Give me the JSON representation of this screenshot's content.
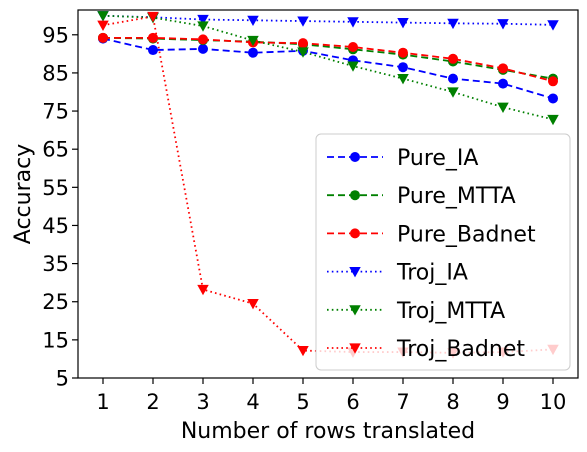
{
  "chart_data": {
    "type": "line",
    "xlabel": "Number of rows translated",
    "ylabel": "Accuracy",
    "x": [
      1,
      2,
      3,
      4,
      5,
      6,
      7,
      8,
      9,
      10
    ],
    "xlim": [
      0.5,
      10.5
    ],
    "ylim": [
      5,
      101.5
    ],
    "xticks": [
      "1",
      "2",
      "3",
      "4",
      "5",
      "6",
      "7",
      "8",
      "9",
      "10"
    ],
    "yticks": [
      5,
      15,
      25,
      35,
      45,
      55,
      65,
      75,
      85,
      95
    ],
    "grid": false,
    "legend_position": "bottom-right",
    "series": [
      {
        "name": "Pure_IA",
        "color": "#0000ff",
        "dash": "dashed",
        "marker": "circle",
        "values": [
          94.0,
          91.0,
          91.3,
          90.3,
          90.8,
          88.3,
          86.5,
          83.5,
          82.2,
          78.3
        ]
      },
      {
        "name": "Pure_MTTA",
        "color": "#008000",
        "dash": "dashed",
        "marker": "circle",
        "values": [
          94.2,
          94.0,
          93.6,
          93.2,
          92.5,
          91.2,
          89.8,
          88.0,
          85.8,
          83.5
        ]
      },
      {
        "name": "Pure_Badnet",
        "color": "#ff0000",
        "dash": "dashed",
        "marker": "circle",
        "values": [
          94.2,
          94.2,
          93.8,
          93.0,
          92.8,
          91.8,
          90.3,
          88.7,
          86.2,
          82.8
        ]
      },
      {
        "name": "Troj_IA",
        "color": "#0000ff",
        "dash": "dotted",
        "marker": "triangle",
        "values": [
          100.0,
          99.6,
          99.0,
          98.8,
          98.6,
          98.4,
          98.2,
          98.0,
          97.9,
          97.6
        ]
      },
      {
        "name": "Troj_MTTA",
        "color": "#008000",
        "dash": "dotted",
        "marker": "triangle",
        "values": [
          100.0,
          99.5,
          97.3,
          93.5,
          90.5,
          86.8,
          83.5,
          80.0,
          76.0,
          72.8
        ]
      },
      {
        "name": "Troj_Badnet",
        "color": "#ff0000",
        "dash": "dotted",
        "marker": "triangle",
        "values": [
          97.5,
          99.8,
          28.2,
          24.5,
          12.2,
          11.8,
          11.8,
          11.6,
          11.8,
          12.5
        ]
      }
    ]
  }
}
